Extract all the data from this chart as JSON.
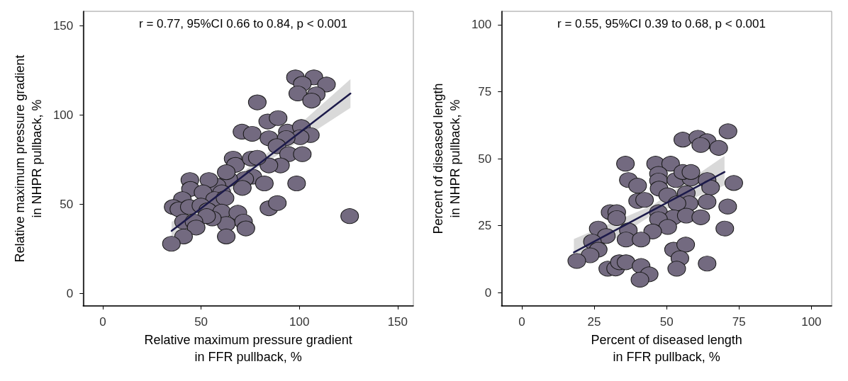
{
  "chart_data": [
    {
      "type": "scatter",
      "xlabel": "Relative maximum pressure gradient\nin FFR pullback, %",
      "ylabel": "Relative maximum pressure gradient\nin NHPR pullback, %",
      "annotations": [
        "r = 0.77, 95%CI 0.66 to 0.84, p < 0.001"
      ],
      "xlim": [
        -10,
        158
      ],
      "ylim": [
        -7,
        158
      ],
      "xticks": [
        0,
        50,
        100,
        150
      ],
      "yticks": [
        0,
        50,
        100,
        150
      ],
      "grid": false,
      "series": [
        {
          "marker": "circle",
          "color": "#736a80",
          "x": [
            98,
            107.4,
            101.5,
            113.8,
            99.2,
            108.6,
            106.2,
            78.6,
            83.9,
            89.2,
            70.8,
            76,
            84.5,
            93.9,
            101,
            105.6,
            100.4,
            93.3,
            88.6,
            94.5,
            101.5,
            90.4,
            84.5,
            66.3,
            67.5,
            75.5,
            78.6,
            76.3,
            82.2,
            98.6,
            72.2,
            71,
            64,
            62.8,
            58.1,
            60.5,
            54,
            44.3,
            44.6,
            51,
            56.9,
            62.2,
            40.5,
            35.8,
            38.7,
            44,
            49.9,
            53.4,
            60.5,
            68.7,
            71.6,
            72.8,
            62.8,
            62.8,
            55.7,
            52.8,
            41.1,
            46.4,
            47.5,
            41.1,
            34.9,
            84.5,
            88.8,
            125.6
          ],
          "values": [
            121,
            121,
            117.4,
            117,
            112,
            111.5,
            108,
            107,
            96.3,
            98.2,
            90.6,
            89.4,
            86.9,
            90.6,
            93.2,
            88.7,
            87.5,
            87,
            82.5,
            78,
            78,
            71.7,
            71.7,
            75.5,
            72,
            75.5,
            76,
            65.4,
            61.6,
            61.6,
            64.1,
            59.1,
            64.1,
            67.9,
            60.3,
            56.6,
            63.5,
            63.5,
            58.5,
            56.6,
            52.8,
            53.4,
            52.8,
            48.4,
            47.1,
            48.4,
            49.2,
            46.6,
            45.8,
            45.2,
            40.2,
            36.4,
            38.9,
            31.9,
            42,
            43.3,
            40.2,
            40.2,
            36.9,
            31.9,
            27.8,
            47.7,
            50.6,
            43.3
          ]
        },
        {
          "type": "line",
          "marker": "none",
          "color": "#1c1a4a",
          "x": [
            35,
            80,
            126
          ],
          "values": [
            35,
            73,
            112
          ],
          "lower": [
            30,
            71,
            104
          ],
          "upper": [
            40,
            75,
            120
          ]
        }
      ]
    },
    {
      "type": "scatter",
      "xlabel": "Percent of diseased length\nin FFR pullback, %",
      "ylabel": "Percent of diseased length\nin NHPR pullback, %",
      "annotations": [
        "r = 0.55, 95%CI 0.39 to 0.68, p < 0.001"
      ],
      "xlim": [
        -7,
        107
      ],
      "ylim": [
        -5,
        105
      ],
      "xticks": [
        0,
        25,
        50,
        75,
        100
      ],
      "yticks": [
        0,
        25,
        50,
        75,
        100
      ],
      "grid": false,
      "series": [
        {
          "marker": "circle",
          "color": "#736a80",
          "x": [
            71.2,
            55.6,
            60.8,
            64,
            61.8,
            68,
            35.8,
            46.2,
            51.4,
            36.8,
            40,
            47.2,
            47.2,
            53.2,
            58.4,
            55.6,
            58.4,
            64,
            65.2,
            73.2,
            47.4,
            50.4,
            56.8,
            40,
            42.4,
            57.8,
            64,
            53.6,
            47.2,
            52.4,
            56.8,
            61.8,
            71.1,
            70.1,
            47.2,
            50.4,
            45.2,
            30.5,
            32.8,
            32.8,
            26.4,
            29.2,
            36.8,
            36,
            41.2,
            24.4,
            26.4,
            23.6,
            19,
            29.7,
            32.4,
            33.7,
            36,
            41.2,
            44,
            40.8,
            52.4,
            56.6,
            54.6,
            53.5,
            64
          ],
          "values": [
            60.2,
            57.1,
            57.8,
            56.5,
            55.1,
            54,
            48.1,
            48.1,
            48.1,
            42,
            39.9,
            44.3,
            41.8,
            42,
            42.6,
            45,
            45,
            42,
            39.2,
            40.9,
            38.8,
            36.3,
            37.1,
            34.2,
            34.6,
            33.3,
            33.9,
            33.3,
            30,
            28.1,
            28.7,
            28.1,
            32.1,
            23.9,
            27.4,
            24.5,
            22.8,
            30,
            30,
            27.8,
            23.9,
            21.1,
            23.2,
            19.8,
            19.8,
            19,
            16,
            13.9,
            11.8,
            8.9,
            9,
            11.3,
            11.3,
            9.9,
            6.8,
            4.8,
            16,
            17.9,
            12.8,
            8.9,
            10.8
          ]
        },
        {
          "type": "line",
          "marker": "none",
          "color": "#1c1a4a",
          "x": [
            18,
            45,
            70
          ],
          "values": [
            15,
            30.6,
            45
          ],
          "lower": [
            10,
            29,
            40
          ],
          "upper": [
            20,
            32.5,
            51
          ]
        }
      ]
    }
  ]
}
